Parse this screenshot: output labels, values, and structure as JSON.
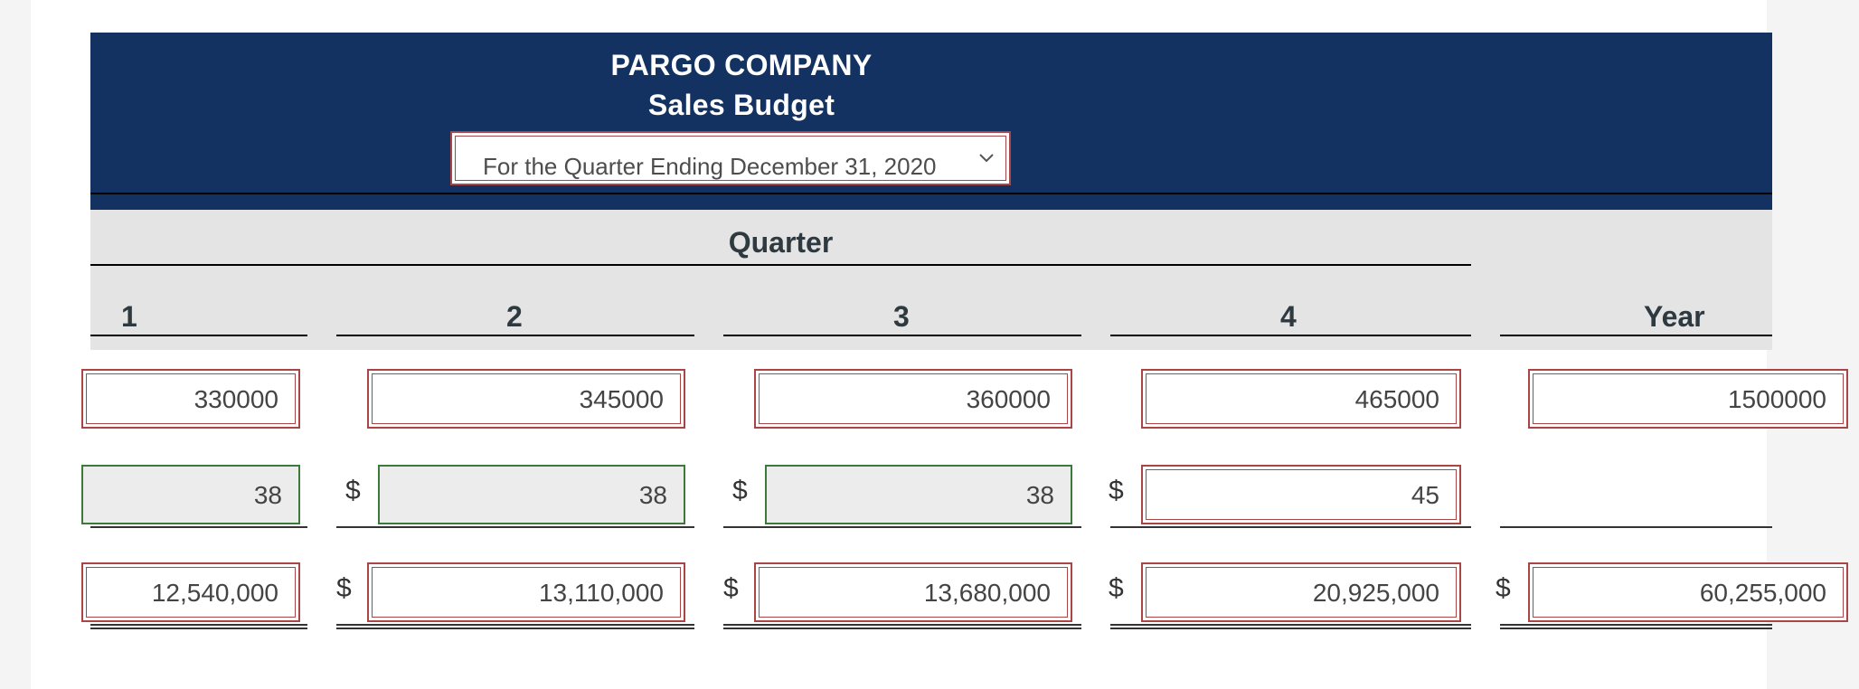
{
  "header": {
    "company": "PARGO COMPANY",
    "budget_title": "Sales Budget",
    "period_select": {
      "selected": "For the Quarter Ending December 31, 2020"
    },
    "accent_color": "#133262"
  },
  "table": {
    "group_label": "Quarter",
    "columns": [
      "1",
      "2",
      "3",
      "4",
      "Year"
    ],
    "rows": {
      "units": [
        "330000",
        "345000",
        "360000",
        "465000",
        "1500000"
      ],
      "price": [
        "38",
        "38",
        "38",
        "45"
      ],
      "sales": [
        "12,540,000",
        "13,110,000",
        "13,680,000",
        "20,925,000",
        "60,255,000"
      ]
    },
    "currency_symbol": "$"
  }
}
